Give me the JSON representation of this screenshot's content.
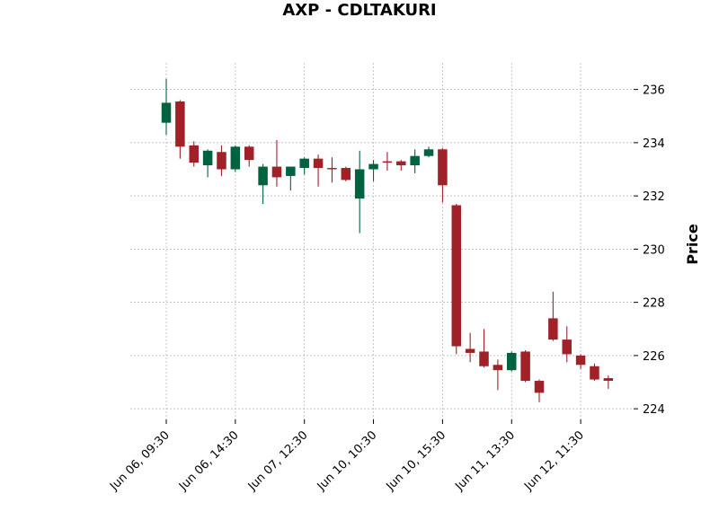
{
  "chart_data": {
    "type": "candlestick",
    "title": "AXP - CDLTAKURI",
    "ylabel": "Price",
    "xlabel": "",
    "ylim": [
      223.6,
      237.0
    ],
    "yticks": [
      224,
      226,
      228,
      230,
      232,
      234,
      236
    ],
    "grid": true,
    "y_axis_side": "right",
    "colors": {
      "up": "#006340",
      "down": "#A02128"
    },
    "xtick_labels": [
      {
        "index": 0,
        "label": "Jun 06, 09:30"
      },
      {
        "index": 5,
        "label": "Jun 06, 14:30"
      },
      {
        "index": 10,
        "label": "Jun 07, 12:30"
      },
      {
        "index": 15,
        "label": "Jun 10, 10:30"
      },
      {
        "index": 20,
        "label": "Jun 10, 15:30"
      },
      {
        "index": 25,
        "label": "Jun 11, 13:30"
      },
      {
        "index": 30,
        "label": "Jun 12, 11:30"
      }
    ],
    "candles": [
      {
        "o": 234.75,
        "h": 236.4,
        "l": 234.3,
        "c": 235.5
      },
      {
        "o": 235.55,
        "h": 235.6,
        "l": 233.4,
        "c": 233.85
      },
      {
        "o": 233.9,
        "h": 234.05,
        "l": 233.1,
        "c": 233.25
      },
      {
        "o": 233.15,
        "h": 233.75,
        "l": 232.7,
        "c": 233.7
      },
      {
        "o": 233.65,
        "h": 233.9,
        "l": 232.75,
        "c": 233.0
      },
      {
        "o": 233.0,
        "h": 233.9,
        "l": 232.9,
        "c": 233.85
      },
      {
        "o": 233.85,
        "h": 233.9,
        "l": 233.1,
        "c": 233.35
      },
      {
        "o": 232.4,
        "h": 233.2,
        "l": 231.7,
        "c": 233.1
      },
      {
        "o": 233.1,
        "h": 234.1,
        "l": 232.35,
        "c": 232.7
      },
      {
        "o": 232.75,
        "h": 233.1,
        "l": 232.2,
        "c": 233.1
      },
      {
        "o": 233.05,
        "h": 233.45,
        "l": 232.8,
        "c": 233.4
      },
      {
        "o": 233.4,
        "h": 233.55,
        "l": 232.35,
        "c": 233.05
      },
      {
        "o": 233.05,
        "h": 233.45,
        "l": 232.5,
        "c": 233.0
      },
      {
        "o": 233.05,
        "h": 233.1,
        "l": 232.55,
        "c": 232.6
      },
      {
        "o": 231.9,
        "h": 233.7,
        "l": 230.6,
        "c": 233.0
      },
      {
        "o": 233.0,
        "h": 233.35,
        "l": 232.55,
        "c": 233.2
      },
      {
        "o": 233.3,
        "h": 233.65,
        "l": 232.95,
        "c": 233.25
      },
      {
        "o": 233.3,
        "h": 233.35,
        "l": 232.95,
        "c": 233.15
      },
      {
        "o": 233.15,
        "h": 233.75,
        "l": 232.85,
        "c": 233.5
      },
      {
        "o": 233.5,
        "h": 233.85,
        "l": 233.45,
        "c": 233.75
      },
      {
        "o": 233.75,
        "h": 233.8,
        "l": 231.75,
        "c": 232.4
      },
      {
        "o": 231.65,
        "h": 231.7,
        "l": 226.05,
        "c": 226.35
      },
      {
        "o": 226.25,
        "h": 226.85,
        "l": 225.75,
        "c": 226.1
      },
      {
        "o": 226.15,
        "h": 227.0,
        "l": 225.55,
        "c": 225.6
      },
      {
        "o": 225.65,
        "h": 225.85,
        "l": 224.7,
        "c": 225.45
      },
      {
        "o": 225.45,
        "h": 226.15,
        "l": 225.4,
        "c": 226.1
      },
      {
        "o": 226.15,
        "h": 226.2,
        "l": 225.0,
        "c": 225.05
      },
      {
        "o": 225.05,
        "h": 225.1,
        "l": 224.25,
        "c": 224.6
      },
      {
        "o": 227.4,
        "h": 228.4,
        "l": 226.55,
        "c": 226.6
      },
      {
        "o": 226.6,
        "h": 227.1,
        "l": 225.75,
        "c": 226.05
      },
      {
        "o": 226.0,
        "h": 226.05,
        "l": 225.5,
        "c": 225.65
      },
      {
        "o": 225.6,
        "h": 225.7,
        "l": 225.05,
        "c": 225.1
      },
      {
        "o": 225.15,
        "h": 225.25,
        "l": 224.75,
        "c": 225.05
      }
    ]
  }
}
